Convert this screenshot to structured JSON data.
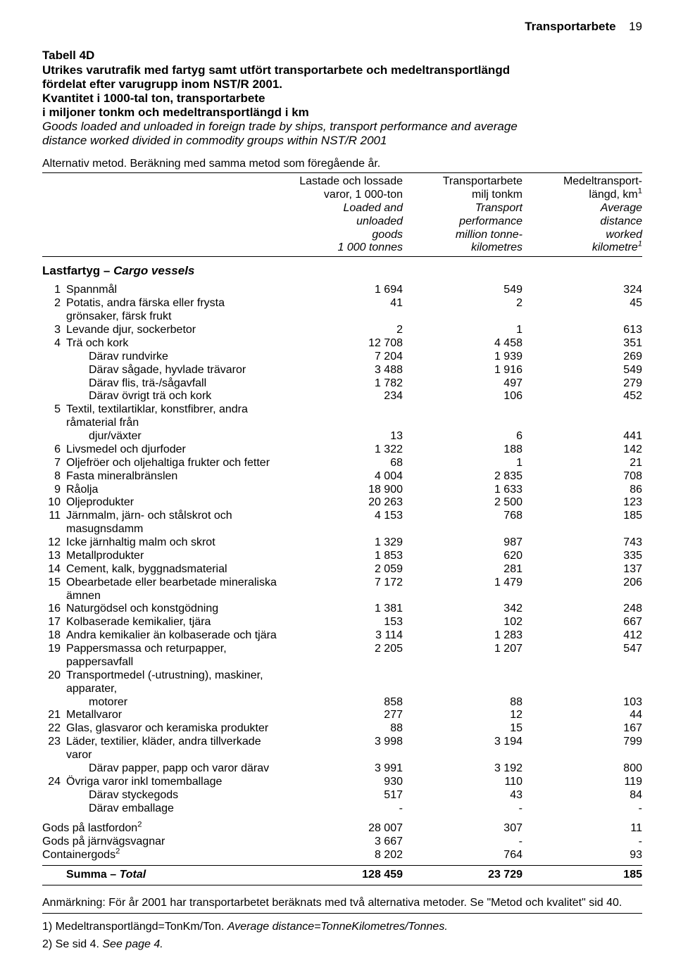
{
  "header": {
    "title": "Transportarbete",
    "page": "19"
  },
  "title": {
    "table_label": "Tabell 4D",
    "line1": "Utrikes varutrafik med fartyg samt utfört transportarbete och medeltransportlängd",
    "line2": "fördelat efter varugrupp inom NST/R 2001.",
    "line3": "Kvantitet i 1000-tal ton, transportarbete",
    "line4": "i miljoner tonkm och medeltransportlängd i km",
    "line5_it": "Goods loaded and unloaded in foreign trade by ships, transport performance and average",
    "line6_it": "distance worked divided in commodity groups within NST/R 2001",
    "alt": "Alternativ metod. Beräkning med samma metod som föregående år."
  },
  "columns": [
    {
      "sv": "Lastade och lossade\nvaror, 1 000-ton",
      "en": "Loaded and\nunloaded\ngoods\n1 000 tonnes"
    },
    {
      "sv": "Transportarbete\nmilj tonkm",
      "en": "Transport\nperformance\nmillion tonne-\nkilometres"
    },
    {
      "sv": "Medeltransport-\nlängd, km",
      "en": "Average\ndistance\nworked\nkilometre",
      "sup1": "1",
      "sup2": "1"
    }
  ],
  "section": {
    "sv": "Lastfartyg – ",
    "en": "Cargo vessels"
  },
  "rows": [
    {
      "n": "1",
      "label": "Spannmål",
      "v": [
        "1 694",
        "549",
        "324"
      ]
    },
    {
      "n": "2",
      "label": "Potatis, andra färska eller frysta grönsaker, färsk frukt",
      "v": [
        "41",
        "2",
        "45"
      ]
    },
    {
      "n": "3",
      "label": "Levande djur, sockerbetor",
      "v": [
        "2",
        "1",
        "613"
      ]
    },
    {
      "n": "4",
      "label": "Trä och kork",
      "v": [
        "12 708",
        "4 458",
        "351"
      ]
    },
    {
      "indent": true,
      "label": "Därav rundvirke",
      "v": [
        "7 204",
        "1 939",
        "269"
      ]
    },
    {
      "indent": true,
      "label": "Därav sågade, hyvlade trävaror",
      "v": [
        "3 488",
        "1 916",
        "549"
      ]
    },
    {
      "indent": true,
      "label": "Därav flis, trä-/sågavfall",
      "v": [
        "1 782",
        "497",
        "279"
      ]
    },
    {
      "indent": true,
      "label": "Därav övrigt trä och kork",
      "v": [
        "234",
        "106",
        "452"
      ]
    },
    {
      "n": "5",
      "label": "Textil, textilartiklar, konstfibrer, andra råmaterial från",
      "v": [
        "",
        "",
        ""
      ]
    },
    {
      "indent": true,
      "noidx": false,
      "label": "djur/växter",
      "v": [
        "13",
        "6",
        "441"
      ],
      "cont": true
    },
    {
      "n": "6",
      "label": "Livsmedel och djurfoder",
      "v": [
        "1 322",
        "188",
        "142"
      ]
    },
    {
      "n": "7",
      "label": "Oljefröer och oljehaltiga frukter och fetter",
      "v": [
        "68",
        "1",
        "21"
      ]
    },
    {
      "n": "8",
      "label": "Fasta mineralbränslen",
      "v": [
        "4 004",
        "2 835",
        "708"
      ]
    },
    {
      "n": "9",
      "label": "Råolja",
      "v": [
        "18 900",
        "1 633",
        "86"
      ]
    },
    {
      "n": "10",
      "label": "Oljeprodukter",
      "v": [
        "20 263",
        "2 500",
        "123"
      ]
    },
    {
      "n": "11",
      "label": "Järnmalm, järn- och stålskrot och masugnsdamm",
      "v": [
        "4 153",
        "768",
        "185"
      ]
    },
    {
      "n": "12",
      "label": "Icke järnhaltig malm och skrot",
      "v": [
        "1 329",
        "987",
        "743"
      ]
    },
    {
      "n": "13",
      "label": "Metallprodukter",
      "v": [
        "1 853",
        "620",
        "335"
      ]
    },
    {
      "n": "14",
      "label": "Cement, kalk, byggnadsmaterial",
      "v": [
        "2 059",
        "281",
        "137"
      ]
    },
    {
      "n": "15",
      "label": "Obearbetade eller bearbetade mineraliska ämnen",
      "v": [
        "7 172",
        "1 479",
        "206"
      ]
    },
    {
      "n": "16",
      "label": "Naturgödsel och konstgödning",
      "v": [
        "1 381",
        "342",
        "248"
      ]
    },
    {
      "n": "17",
      "label": "Kolbaserade kemikalier, tjära",
      "v": [
        "153",
        "102",
        "667"
      ]
    },
    {
      "n": "18",
      "label": "Andra kemikalier än kolbaserade och tjära",
      "v": [
        "3 114",
        "1 283",
        "412"
      ]
    },
    {
      "n": "19",
      "label": "Pappersmassa och returpapper, pappersavfall",
      "v": [
        "2 205",
        "1 207",
        "547"
      ]
    },
    {
      "n": "20",
      "label": "Transportmedel (-utrustning), maskiner, apparater,",
      "v": [
        "",
        "",
        ""
      ]
    },
    {
      "indent": true,
      "label": "motorer",
      "v": [
        "858",
        "88",
        "103"
      ],
      "cont": true
    },
    {
      "n": "21",
      "label": "Metallvaror",
      "v": [
        "277",
        "12",
        "44"
      ]
    },
    {
      "n": "22",
      "label": "Glas, glasvaror och keramiska produkter",
      "v": [
        "88",
        "15",
        "167"
      ]
    },
    {
      "n": "23",
      "label": "Läder, textilier, kläder, andra tillverkade varor",
      "v": [
        "3 998",
        "3 194",
        "799"
      ]
    },
    {
      "indent": true,
      "label": "Därav papper, papp och varor därav",
      "v": [
        "3 991",
        "3 192",
        "800"
      ]
    },
    {
      "n": "24",
      "label": "Övriga varor inkl tomemballage",
      "v": [
        "930",
        "110",
        "119"
      ]
    },
    {
      "indent": true,
      "label": "Därav styckegods",
      "v": [
        "517",
        "43",
        "84"
      ]
    },
    {
      "indent": true,
      "label": "Därav emballage",
      "v": [
        "-",
        "-",
        "-"
      ]
    }
  ],
  "extra_rows": [
    {
      "label": "Gods på lastfordon",
      "sup": "2",
      "v": [
        "28 007",
        "307",
        "11"
      ]
    },
    {
      "label": "Gods på järnvägsvagnar",
      "v": [
        "3 667",
        "-",
        "-"
      ]
    },
    {
      "label": "Containergods",
      "sup": "2",
      "v": [
        "8 202",
        "764",
        "93"
      ]
    }
  ],
  "total": {
    "sv": "Summa – ",
    "en": "Total",
    "v": [
      "128 459",
      "23 729",
      "185"
    ]
  },
  "footnotes": {
    "remark": "Anmärkning: För år 2001 har transportarbetet beräknats med två alternativa metoder. Se \"Metod och kvalitet\" sid 40.",
    "n1_sv": "1) Medeltransportlängd=TonKm/Ton. ",
    "n1_en": "Average distance=TonneKilometres/Tonnes.",
    "n2_sv": "2) Se sid 4. ",
    "n2_en": "See page 4."
  }
}
